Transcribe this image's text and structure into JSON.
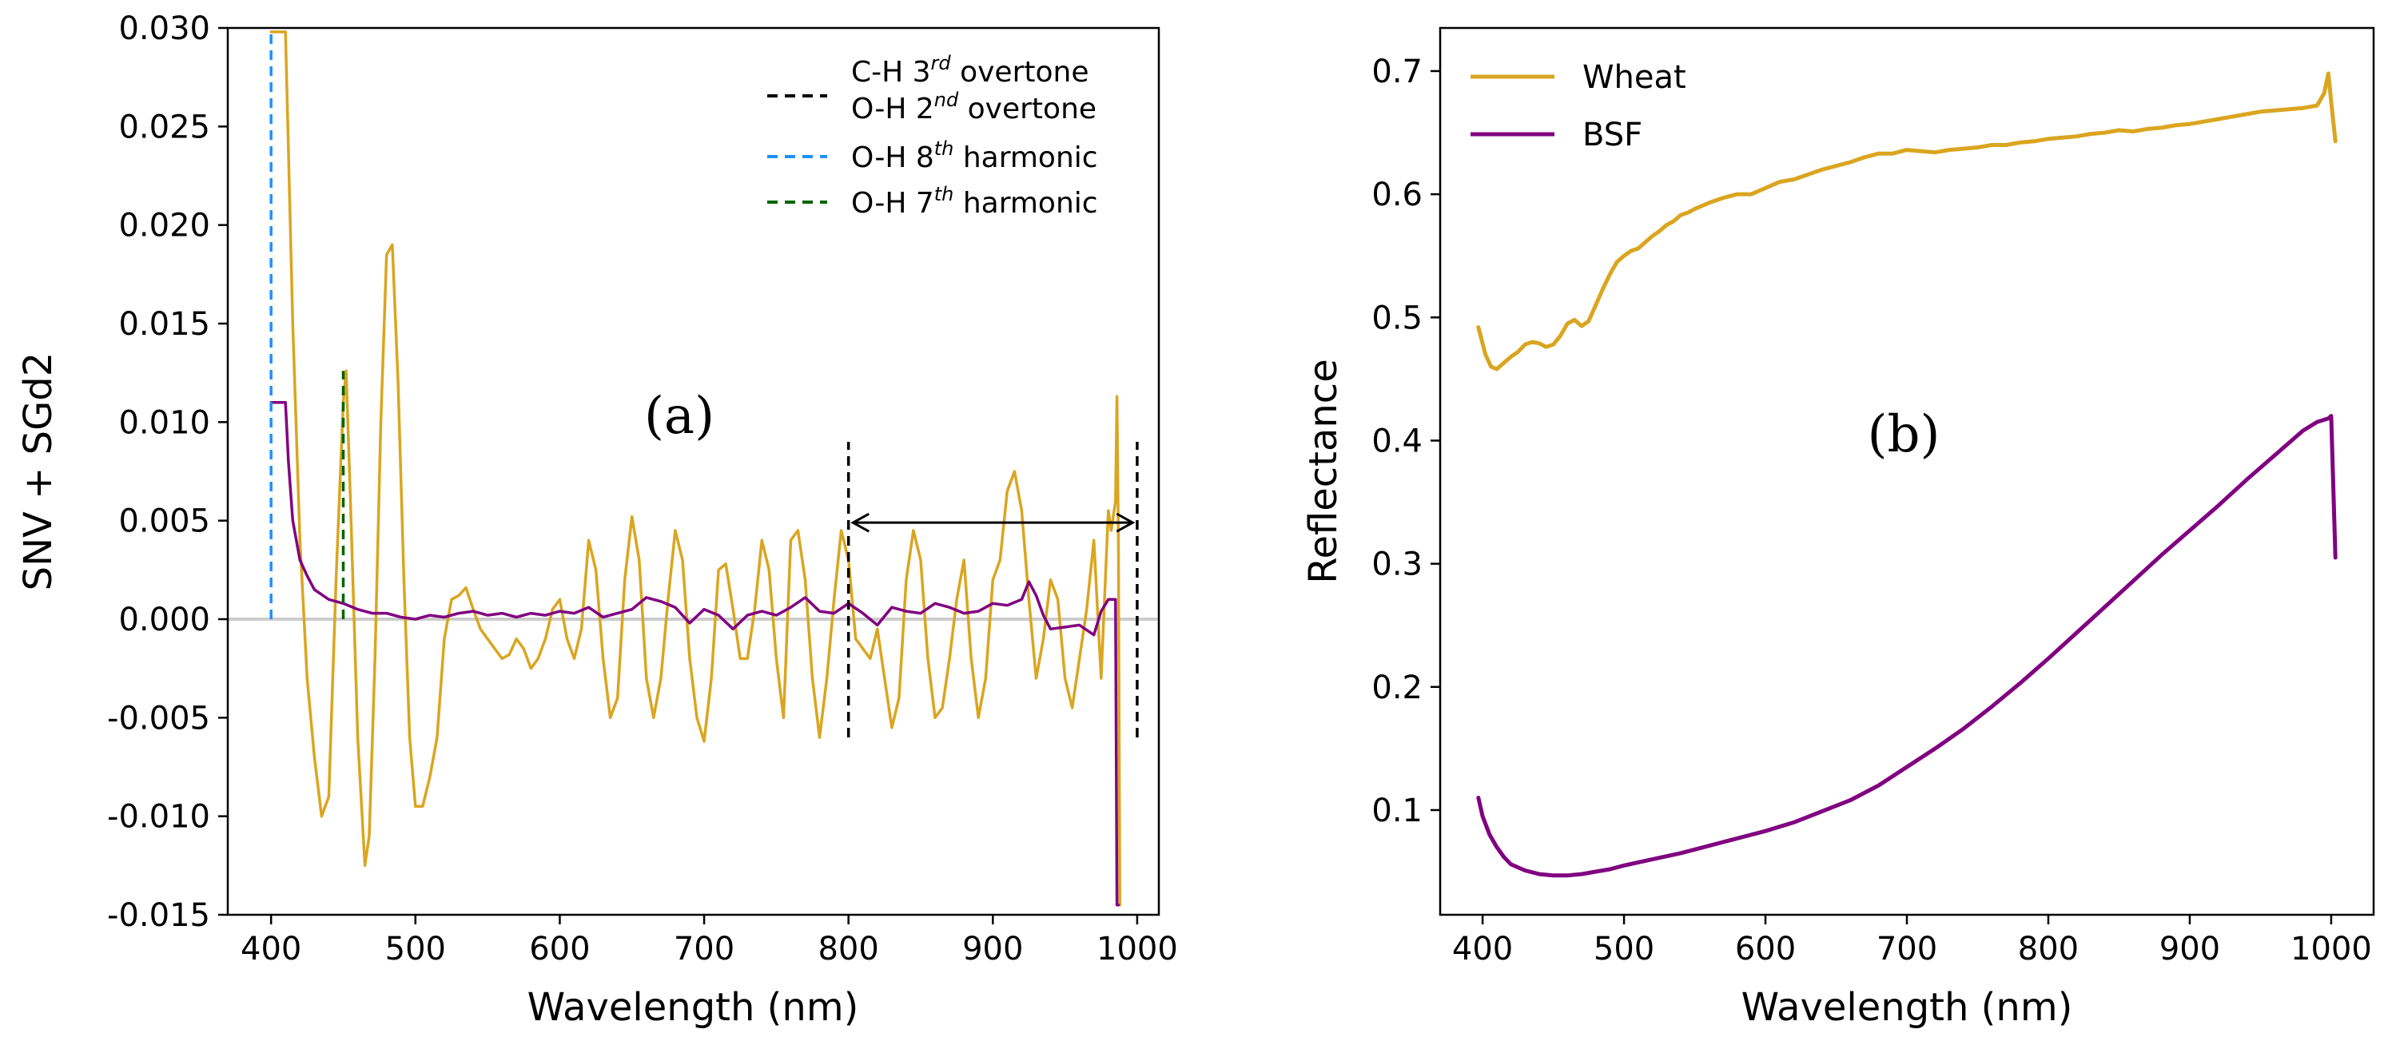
{
  "colors": {
    "wheat": "#DAA520",
    "bsf": "#800080",
    "ch3": "#000000",
    "oh8": "#1E90FF",
    "oh7": "#006400",
    "zero_line": "#CCCCCC"
  },
  "chart_data": [
    {
      "type": "line",
      "panel_label": "(a)",
      "xlabel": "Wavelength (nm)",
      "ylabel": "SNV + SGd2",
      "xlim": [
        370,
        1015
      ],
      "ylim": [
        -0.015,
        0.03
      ],
      "xticks": [
        400,
        500,
        600,
        700,
        800,
        900,
        1000
      ],
      "yticks": [
        -0.015,
        -0.01,
        -0.005,
        0.0,
        0.005,
        0.01,
        0.015,
        0.02,
        0.025,
        0.03
      ],
      "ytick_labels": [
        "-0.015",
        "-0.010",
        "-0.005",
        "0.000",
        "0.005",
        "0.010",
        "0.015",
        "0.020",
        "0.025",
        "0.030"
      ],
      "legend": [
        {
          "main": "C-H 3",
          "sup": "rd",
          "rest": " overtone",
          "color_key": "ch3"
        },
        {
          "main": "O-H 2",
          "sup": "nd",
          "rest": " overtone",
          "color_key": "ch3"
        },
        {
          "main": "O-H 8",
          "sup": "th",
          "rest": " harmonic",
          "color_key": "oh8"
        },
        {
          "main": "O-H 7",
          "sup": "th",
          "rest": " harmonic",
          "color_key": "oh7"
        }
      ],
      "vlines": [
        {
          "x": 400,
          "ymin": 0.0,
          "ymax": 0.0298,
          "color_key": "oh8"
        },
        {
          "x": 450,
          "ymin": 0.0,
          "ymax": 0.0126,
          "color_key": "oh7"
        },
        {
          "x": 800,
          "ymin": -0.006,
          "ymax": 0.009,
          "color_key": "ch3"
        },
        {
          "x": 1000,
          "ymin": -0.006,
          "ymax": 0.009,
          "color_key": "ch3"
        }
      ],
      "arrow": {
        "x1": 802,
        "x2": 998,
        "y": 0.0049
      },
      "hline_y": 0.0,
      "series": [
        {
          "name": "Wheat",
          "color_key": "wheat",
          "x": [
            400,
            410,
            415,
            420,
            425,
            430,
            435,
            440,
            445,
            450,
            452,
            455,
            460,
            465,
            468,
            472,
            476,
            480,
            484,
            488,
            492,
            496,
            500,
            505,
            510,
            515,
            520,
            525,
            530,
            535,
            540,
            545,
            550,
            555,
            560,
            565,
            570,
            575,
            580,
            585,
            590,
            595,
            600,
            605,
            610,
            615,
            620,
            625,
            630,
            635,
            640,
            645,
            650,
            655,
            660,
            665,
            670,
            675,
            680,
            685,
            690,
            695,
            700,
            705,
            710,
            715,
            720,
            725,
            730,
            735,
            740,
            745,
            750,
            755,
            760,
            765,
            770,
            775,
            780,
            785,
            790,
            795,
            800,
            805,
            810,
            815,
            820,
            825,
            830,
            835,
            840,
            845,
            850,
            855,
            860,
            865,
            870,
            875,
            880,
            885,
            890,
            895,
            900,
            905,
            910,
            915,
            920,
            925,
            930,
            935,
            940,
            945,
            950,
            955,
            960,
            965,
            970,
            975,
            980,
            982,
            985,
            986,
            987,
            988
          ],
          "y": [
            0.0298,
            0.0298,
            0.015,
            0.004,
            -0.003,
            -0.007,
            -0.01,
            -0.009,
            0.002,
            0.011,
            0.0126,
            0.006,
            -0.006,
            -0.0125,
            -0.011,
            -0.002,
            0.01,
            0.0185,
            0.019,
            0.012,
            0.002,
            -0.006,
            -0.0095,
            -0.0095,
            -0.008,
            -0.006,
            -0.001,
            0.001,
            0.0012,
            0.0016,
            0.0005,
            -0.0005,
            -0.001,
            -0.0015,
            -0.002,
            -0.0018,
            -0.001,
            -0.0015,
            -0.0025,
            -0.002,
            -0.001,
            0.0005,
            0.001,
            -0.001,
            -0.002,
            -0.0005,
            0.004,
            0.0025,
            -0.002,
            -0.005,
            -0.004,
            0.002,
            0.0052,
            0.003,
            -0.003,
            -0.005,
            -0.003,
            0.001,
            0.0045,
            0.003,
            -0.002,
            -0.005,
            -0.0062,
            -0.003,
            0.0025,
            0.0028,
            0.0005,
            -0.002,
            -0.002,
            0.0005,
            0.004,
            0.0025,
            -0.002,
            -0.005,
            0.004,
            0.0045,
            0.002,
            -0.003,
            -0.006,
            -0.003,
            0.001,
            0.0045,
            0.003,
            -0.001,
            -0.0015,
            -0.002,
            -0.0005,
            -0.003,
            -0.0055,
            -0.004,
            0.002,
            0.0045,
            0.003,
            -0.002,
            -0.005,
            -0.0045,
            -0.002,
            0.001,
            0.003,
            -0.002,
            -0.005,
            -0.003,
            0.002,
            0.003,
            0.0065,
            0.0075,
            0.0055,
            0.001,
            -0.003,
            -0.001,
            0.002,
            0.001,
            -0.003,
            -0.0045,
            -0.002,
            0.0005,
            0.004,
            -0.003,
            0.0055,
            0.0045,
            0.006,
            0.0113,
            0.004,
            -0.0145
          ]
        },
        {
          "name": "BSF",
          "color_key": "bsf",
          "x": [
            400,
            410,
            412,
            415,
            420,
            425,
            430,
            440,
            450,
            460,
            470,
            480,
            490,
            500,
            510,
            520,
            530,
            540,
            550,
            560,
            570,
            580,
            590,
            600,
            610,
            620,
            630,
            640,
            650,
            660,
            670,
            680,
            690,
            700,
            710,
            720,
            730,
            740,
            750,
            760,
            770,
            780,
            790,
            800,
            810,
            820,
            830,
            840,
            850,
            860,
            870,
            880,
            890,
            900,
            910,
            920,
            925,
            930,
            935,
            940,
            950,
            960,
            970,
            975,
            980,
            985,
            986,
            987
          ],
          "y": [
            0.011,
            0.011,
            0.008,
            0.005,
            0.003,
            0.0022,
            0.0015,
            0.001,
            0.0008,
            0.0005,
            0.0003,
            0.0003,
            0.0001,
            0.0,
            0.0002,
            0.0001,
            0.0003,
            0.0004,
            0.0002,
            0.0003,
            0.0001,
            0.0003,
            0.0002,
            0.0004,
            0.0003,
            0.0006,
            0.0001,
            0.0003,
            0.0005,
            0.0011,
            0.0009,
            0.0006,
            -0.0002,
            0.0005,
            0.0002,
            -0.0005,
            0.0002,
            0.0004,
            0.0002,
            0.0006,
            0.0011,
            0.0004,
            0.0003,
            0.0008,
            0.0003,
            -0.0003,
            0.0006,
            0.0004,
            0.0003,
            0.0008,
            0.0006,
            0.0003,
            0.0004,
            0.0008,
            0.0007,
            0.001,
            0.0019,
            0.0012,
            0.0002,
            -0.0005,
            -0.0004,
            -0.0003,
            -0.0008,
            0.0004,
            0.001,
            0.001,
            -0.0145,
            -0.0145
          ]
        }
      ]
    },
    {
      "type": "line",
      "panel_label": "(b)",
      "xlabel": "Wavelength (nm)",
      "ylabel": "Reflectance",
      "xlim": [
        370,
        1030
      ],
      "ylim": [
        0.015,
        0.735
      ],
      "xticks": [
        400,
        500,
        600,
        700,
        800,
        900,
        1000
      ],
      "yticks": [
        0.1,
        0.2,
        0.3,
        0.4,
        0.5,
        0.6,
        0.7
      ],
      "ytick_labels": [
        "0.1",
        "0.2",
        "0.3",
        "0.4",
        "0.5",
        "0.6",
        "0.7"
      ],
      "legend": [
        {
          "label": "Wheat",
          "color_key": "wheat"
        },
        {
          "label": "BSF",
          "color_key": "bsf"
        }
      ],
      "series": [
        {
          "name": "Wheat",
          "color_key": "wheat",
          "x": [
            397,
            402,
            406,
            410,
            415,
            420,
            425,
            430,
            435,
            440,
            445,
            450,
            455,
            460,
            465,
            470,
            475,
            480,
            485,
            490,
            495,
            500,
            505,
            510,
            515,
            520,
            525,
            530,
            535,
            540,
            545,
            550,
            560,
            570,
            580,
            590,
            600,
            610,
            620,
            630,
            640,
            650,
            660,
            670,
            680,
            690,
            700,
            710,
            720,
            730,
            740,
            750,
            760,
            770,
            780,
            790,
            800,
            810,
            820,
            830,
            840,
            850,
            860,
            870,
            880,
            890,
            900,
            910,
            920,
            930,
            940,
            950,
            960,
            970,
            980,
            990,
            995,
            998,
            1000,
            1003
          ],
          "y": [
            0.492,
            0.47,
            0.46,
            0.458,
            0.463,
            0.468,
            0.472,
            0.478,
            0.48,
            0.479,
            0.476,
            0.478,
            0.485,
            0.495,
            0.498,
            0.493,
            0.497,
            0.51,
            0.523,
            0.535,
            0.545,
            0.55,
            0.554,
            0.556,
            0.561,
            0.566,
            0.57,
            0.575,
            0.578,
            0.583,
            0.585,
            0.588,
            0.593,
            0.597,
            0.6,
            0.6,
            0.605,
            0.61,
            0.612,
            0.616,
            0.62,
            0.623,
            0.626,
            0.63,
            0.633,
            0.633,
            0.636,
            0.635,
            0.634,
            0.636,
            0.637,
            0.638,
            0.64,
            0.64,
            0.642,
            0.643,
            0.645,
            0.646,
            0.647,
            0.649,
            0.65,
            0.652,
            0.651,
            0.653,
            0.654,
            0.656,
            0.657,
            0.659,
            0.661,
            0.663,
            0.665,
            0.667,
            0.668,
            0.669,
            0.67,
            0.672,
            0.682,
            0.698,
            0.675,
            0.643
          ]
        },
        {
          "name": "BSF",
          "color_key": "bsf",
          "x": [
            397,
            400,
            405,
            410,
            415,
            420,
            430,
            440,
            450,
            460,
            470,
            480,
            490,
            500,
            520,
            540,
            560,
            580,
            600,
            620,
            640,
            660,
            680,
            700,
            720,
            740,
            760,
            780,
            800,
            820,
            840,
            860,
            880,
            900,
            920,
            940,
            960,
            980,
            990,
            998,
            1000,
            1003
          ],
          "y": [
            0.11,
            0.095,
            0.08,
            0.07,
            0.062,
            0.056,
            0.051,
            0.048,
            0.047,
            0.047,
            0.048,
            0.05,
            0.052,
            0.055,
            0.06,
            0.065,
            0.071,
            0.077,
            0.083,
            0.09,
            0.099,
            0.108,
            0.12,
            0.135,
            0.15,
            0.166,
            0.184,
            0.203,
            0.223,
            0.244,
            0.265,
            0.286,
            0.307,
            0.327,
            0.347,
            0.368,
            0.388,
            0.408,
            0.415,
            0.418,
            0.42,
            0.305
          ]
        }
      ]
    }
  ]
}
